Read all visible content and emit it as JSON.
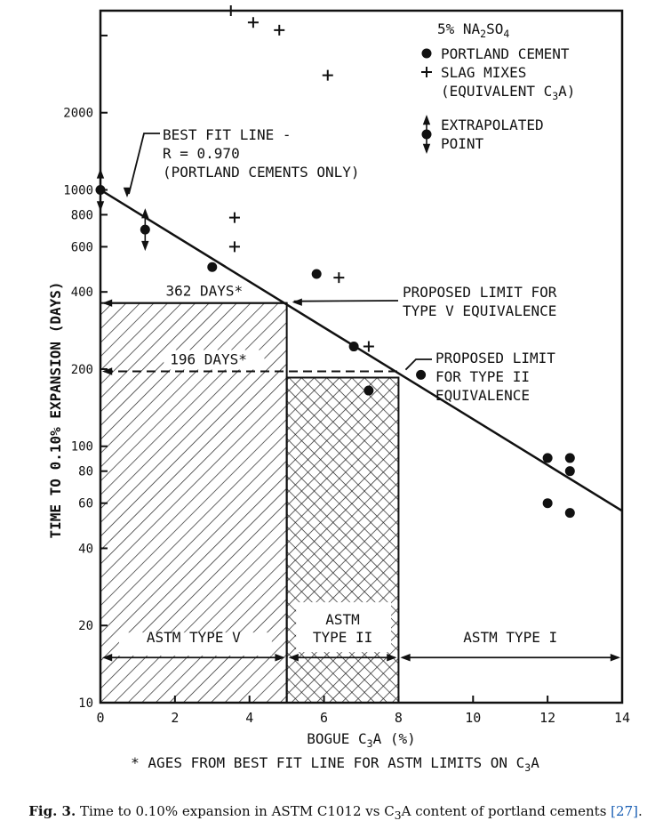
{
  "chart_data": {
    "type": "scatter",
    "y_scale": "log",
    "xlabel_parts": [
      "BOGUE C",
      "3",
      "A (%)"
    ],
    "ylabel": "TIME TO 0.10% EXPANSION (DAYS)",
    "xlim": [
      0,
      14
    ],
    "ylim": [
      10,
      5000
    ],
    "x_ticks": [
      0,
      2,
      4,
      6,
      8,
      10,
      12,
      14
    ],
    "y_ticks": [
      10,
      20,
      40,
      60,
      80,
      100,
      200,
      400,
      600,
      800,
      1000,
      2000
    ],
    "y_tick_labels": [
      "10",
      "20",
      "40",
      "60",
      "80",
      "100",
      "200",
      "400",
      "600",
      "800",
      "1000",
      "2000"
    ],
    "legend": {
      "title_parts": [
        "5% NA",
        "2",
        "SO",
        "4"
      ],
      "portland": "PORTLAND CEMENT",
      "slag_line1": "SLAG MIXES",
      "slag_line2_parts": [
        "(EQUIVALENT C",
        "3",
        "A)"
      ],
      "extrap_line1": "EXTRAPOLATED",
      "extrap_line2": "POINT"
    },
    "series": [
      {
        "name": "PORTLAND CEMENT",
        "marker": "circle",
        "points": [
          {
            "x": 0.0,
            "y": 1000
          },
          {
            "x": 1.2,
            "y": 700
          },
          {
            "x": 3.0,
            "y": 500
          },
          {
            "x": 5.8,
            "y": 470
          },
          {
            "x": 6.8,
            "y": 245
          },
          {
            "x": 7.2,
            "y": 165
          },
          {
            "x": 8.6,
            "y": 190
          },
          {
            "x": 12.0,
            "y": 90
          },
          {
            "x": 12.6,
            "y": 90
          },
          {
            "x": 12.6,
            "y": 80
          },
          {
            "x": 12.0,
            "y": 60
          },
          {
            "x": 12.6,
            "y": 55
          }
        ]
      },
      {
        "name": "SLAG MIXES",
        "marker": "plus",
        "points": [
          {
            "x": 3.5,
            "y": 5000
          },
          {
            "x": 4.1,
            "y": 4500
          },
          {
            "x": 4.8,
            "y": 4200
          },
          {
            "x": 6.1,
            "y": 2800
          },
          {
            "x": 3.6,
            "y": 780
          },
          {
            "x": 3.6,
            "y": 600
          },
          {
            "x": 6.4,
            "y": 455
          },
          {
            "x": 7.2,
            "y": 245
          }
        ]
      }
    ],
    "extrapolated_points": [
      {
        "x": 0.0,
        "y": 1000
      },
      {
        "x": 1.2,
        "y": 700
      }
    ],
    "best_fit": {
      "x": [
        0,
        14
      ],
      "y": [
        1000,
        56
      ]
    },
    "best_fit_label": [
      "BEST FIT LINE -",
      "R = 0.970",
      "(PORTLAND CEMENTS ONLY)"
    ],
    "limit_type_v": {
      "label": [
        "PROPOSED LIMIT FOR",
        "TYPE V EQUIVALENCE"
      ],
      "x": 5.0,
      "days": 362,
      "days_label": "362 DAYS*"
    },
    "limit_type_ii": {
      "label": [
        "PROPOSED LIMIT",
        "FOR TYPE II",
        "EQUIVALENCE"
      ],
      "x": 8.0,
      "days": 196,
      "days_label": "196 DAYS*"
    },
    "regions": [
      {
        "label": [
          "ASTM TYPE V"
        ],
        "x_from": 0,
        "x_to": 5,
        "label_y": 16
      },
      {
        "label": [
          "ASTM",
          "TYPE II"
        ],
        "x_from": 5,
        "x_to": 8,
        "label_y": 16
      },
      {
        "label": [
          "ASTM TYPE I"
        ],
        "x_from": 8,
        "x_to": 14,
        "label_y": 16
      }
    ],
    "footnote_parts": [
      "* AGES FROM BEST FIT LINE FOR ASTM LIMITS ON C",
      "3",
      "A"
    ]
  },
  "caption": {
    "fig": "Fig. 3.",
    "text_before": " Time to 0.10% expansion in ASTM C1012 vs C",
    "sub": "3",
    "text_after": "A content of portland cements ",
    "ref": "[27]",
    "end": "."
  }
}
